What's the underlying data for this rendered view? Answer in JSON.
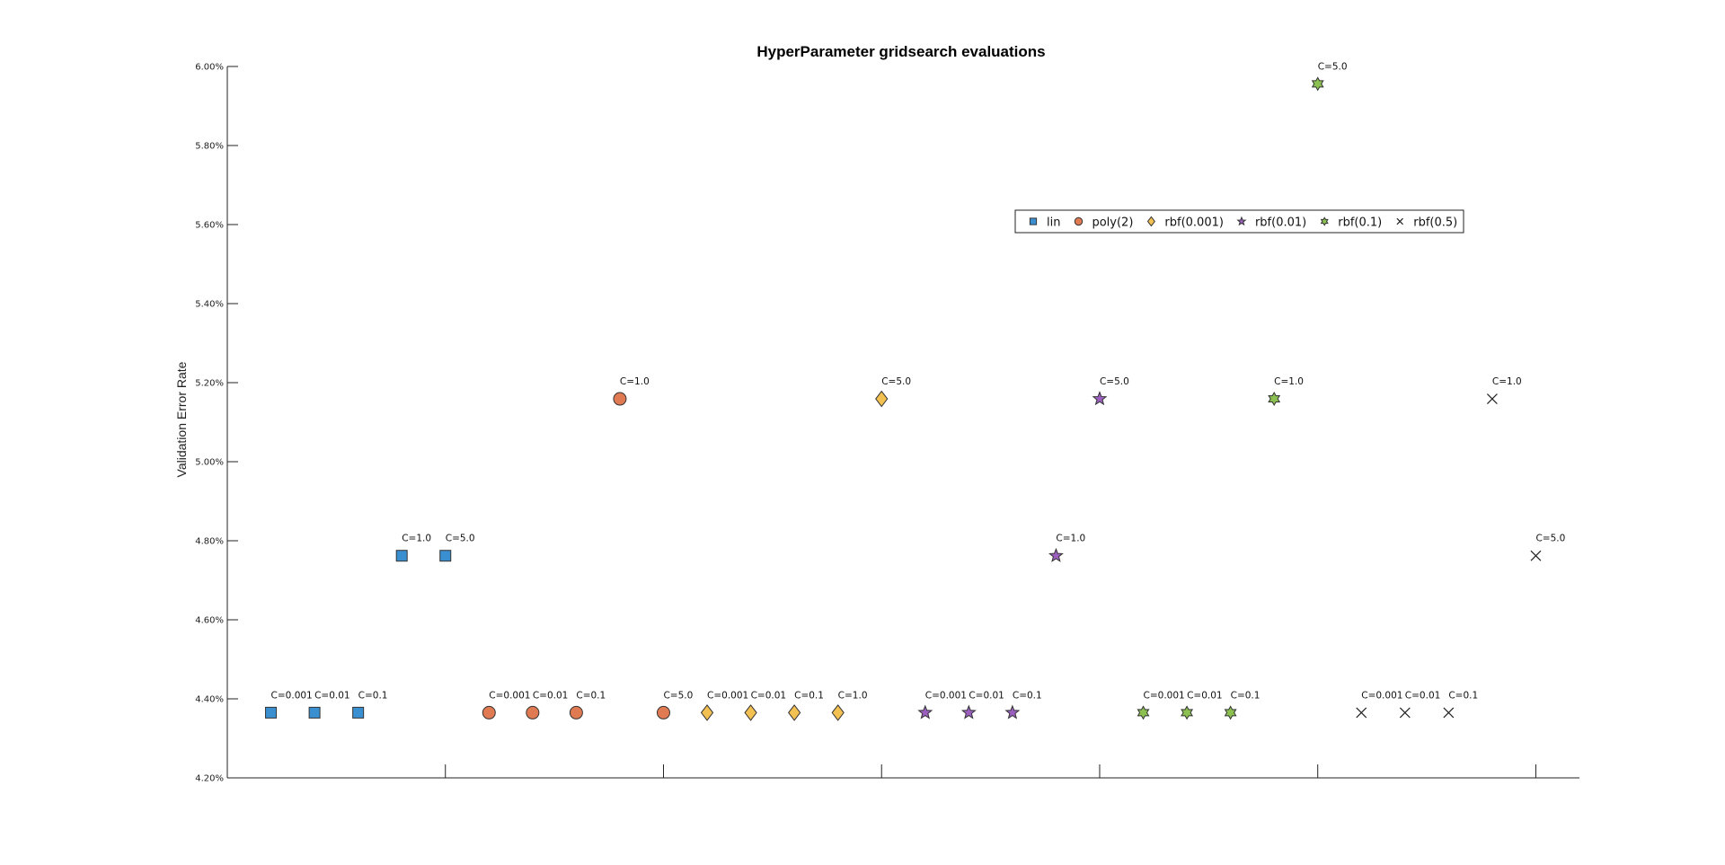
{
  "chart_data": {
    "type": "scatter",
    "title": "HyperParameter gridsearch evaluations",
    "xlabel": "",
    "ylabel": "Validation Error Rate",
    "ylim": [
      4.2,
      6.0
    ],
    "yticks": [
      4.2,
      4.4,
      4.6,
      4.8,
      5.0,
      5.2,
      5.4,
      5.6,
      5.8,
      6.0
    ],
    "ytick_labels": [
      "4.20%",
      "4.40%",
      "4.60%",
      "4.80%",
      "5.00%",
      "5.20%",
      "5.40%",
      "5.60%",
      "5.80%",
      "6.00%"
    ],
    "xlim": [
      0,
      31
    ],
    "xticks": [
      5,
      10,
      15,
      20,
      25,
      30
    ],
    "xtick_labels": [
      "",
      "",
      "",
      "",
      "",
      ""
    ],
    "grid": false,
    "legend_position": "top-right",
    "series": [
      {
        "name": "lin",
        "legend_label": "lin",
        "marker": "square",
        "color": "#3a8fd0",
        "points": [
          {
            "x": 1,
            "y": 4.365,
            "label": "C=0.001"
          },
          {
            "x": 2,
            "y": 4.365,
            "label": "C=0.01"
          },
          {
            "x": 3,
            "y": 4.365,
            "label": "C=0.1"
          },
          {
            "x": 4,
            "y": 4.762,
            "label": "C=1.0"
          },
          {
            "x": 5,
            "y": 4.762,
            "label": "C=5.0"
          }
        ]
      },
      {
        "name": "poly(2)",
        "legend_label": "poly(2)",
        "marker": "circle",
        "color": "#e07a52",
        "points": [
          {
            "x": 6,
            "y": 4.365,
            "label": "C=0.001"
          },
          {
            "x": 7,
            "y": 4.365,
            "label": "C=0.01"
          },
          {
            "x": 8,
            "y": 4.365,
            "label": "C=0.1"
          },
          {
            "x": 9,
            "y": 5.159,
            "label": "C=1.0"
          },
          {
            "x": 10,
            "y": 4.365,
            "label": "C=5.0"
          }
        ]
      },
      {
        "name": "rbf(0.001)",
        "legend_label": "rbf(0.001)",
        "marker": "diamond",
        "color": "#f3c052",
        "points": [
          {
            "x": 11,
            "y": 4.365,
            "label": "C=0.001"
          },
          {
            "x": 12,
            "y": 4.365,
            "label": "C=0.01"
          },
          {
            "x": 13,
            "y": 4.365,
            "label": "C=0.1"
          },
          {
            "x": 14,
            "y": 4.365,
            "label": "C=1.0"
          },
          {
            "x": 15,
            "y": 5.159,
            "label": "C=5.0"
          }
        ]
      },
      {
        "name": "rbf(0.01)",
        "legend_label": "rbf(0.01)",
        "marker": "star5",
        "color": "#9b5fbf",
        "points": [
          {
            "x": 16,
            "y": 4.365,
            "label": "C=0.001"
          },
          {
            "x": 17,
            "y": 4.365,
            "label": "C=0.01"
          },
          {
            "x": 18,
            "y": 4.365,
            "label": "C=0.1"
          },
          {
            "x": 19,
            "y": 4.762,
            "label": "C=1.0"
          },
          {
            "x": 20,
            "y": 5.159,
            "label": "C=5.0"
          }
        ]
      },
      {
        "name": "rbf(0.1)",
        "legend_label": "rbf(0.1)",
        "marker": "star6",
        "color": "#8cc152",
        "points": [
          {
            "x": 21,
            "y": 4.365,
            "label": "C=0.001"
          },
          {
            "x": 22,
            "y": 4.365,
            "label": "C=0.01"
          },
          {
            "x": 23,
            "y": 4.365,
            "label": "C=0.1"
          },
          {
            "x": 24,
            "y": 5.159,
            "label": "C=1.0"
          },
          {
            "x": 25,
            "y": 5.956,
            "label": "C=5.0"
          }
        ]
      },
      {
        "name": "rbf(0.5)",
        "legend_label": "rbf(0.5)",
        "marker": "x",
        "color": "#222222",
        "points": [
          {
            "x": 26,
            "y": 4.365,
            "label": "C=0.001"
          },
          {
            "x": 27,
            "y": 4.365,
            "label": "C=0.01"
          },
          {
            "x": 28,
            "y": 4.365,
            "label": "C=0.1"
          },
          {
            "x": 29,
            "y": 5.159,
            "label": "C=1.0"
          },
          {
            "x": 30,
            "y": 4.762,
            "label": "C=5.0"
          }
        ]
      }
    ]
  }
}
